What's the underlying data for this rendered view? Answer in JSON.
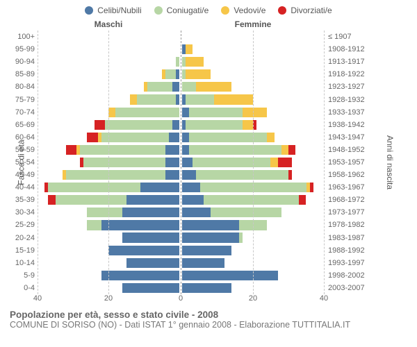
{
  "chart": {
    "type": "population-pyramid",
    "background_color": "#ffffff",
    "grid_color": "#c7c7c7",
    "text_color": "#666666",
    "font_family": "Arial",
    "legend": [
      {
        "label": "Celibi/Nubili",
        "color": "#4f79a6"
      },
      {
        "label": "Coniugati/e",
        "color": "#b7d6a5"
      },
      {
        "label": "Vedovi/e",
        "color": "#f6c649"
      },
      {
        "label": "Divorziati/e",
        "color": "#d62223"
      }
    ],
    "headers": {
      "male": "Maschi",
      "female": "Femmine"
    },
    "axis_left_label": "Fasce di età",
    "axis_right_label": "Anni di nascita",
    "x_ticks": [
      40,
      20,
      0,
      20,
      40
    ],
    "x_max": 40,
    "age_groups": [
      "100+",
      "95-99",
      "90-94",
      "85-89",
      "80-84",
      "75-79",
      "70-74",
      "65-69",
      "60-64",
      "55-59",
      "50-54",
      "45-49",
      "40-44",
      "35-39",
      "30-34",
      "25-29",
      "20-24",
      "15-19",
      "10-14",
      "5-9",
      "0-4"
    ],
    "birth_years": [
      "≤ 1907",
      "1908-1912",
      "1913-1917",
      "1918-1922",
      "1923-1927",
      "1928-1932",
      "1933-1937",
      "1938-1942",
      "1943-1947",
      "1948-1952",
      "1953-1957",
      "1958-1962",
      "1963-1967",
      "1968-1972",
      "1973-1977",
      "1978-1982",
      "1983-1987",
      "1988-1992",
      "1993-1997",
      "1998-2002",
      "2003-2007"
    ],
    "rows": [
      {
        "m": {
          "cel": 0,
          "con": 0,
          "ved": 0,
          "div": 0
        },
        "f": {
          "cel": 0,
          "con": 0,
          "ved": 0,
          "div": 0
        }
      },
      {
        "m": {
          "cel": 0,
          "con": 0,
          "ved": 0,
          "div": 0
        },
        "f": {
          "cel": 1,
          "con": 0,
          "ved": 2,
          "div": 0
        }
      },
      {
        "m": {
          "cel": 0,
          "con": 1,
          "ved": 0,
          "div": 0
        },
        "f": {
          "cel": 0,
          "con": 1,
          "ved": 5,
          "div": 0
        }
      },
      {
        "m": {
          "cel": 1,
          "con": 3,
          "ved": 1,
          "div": 0
        },
        "f": {
          "cel": 0,
          "con": 1,
          "ved": 7,
          "div": 0
        }
      },
      {
        "m": {
          "cel": 2,
          "con": 7,
          "ved": 1,
          "div": 0
        },
        "f": {
          "cel": 0,
          "con": 4,
          "ved": 10,
          "div": 0
        }
      },
      {
        "m": {
          "cel": 1,
          "con": 11,
          "ved": 2,
          "div": 0
        },
        "f": {
          "cel": 1,
          "con": 8,
          "ved": 11,
          "div": 0
        }
      },
      {
        "m": {
          "cel": 0,
          "con": 18,
          "ved": 2,
          "div": 0
        },
        "f": {
          "cel": 2,
          "con": 15,
          "ved": 7,
          "div": 0
        }
      },
      {
        "m": {
          "cel": 2,
          "con": 19,
          "ved": 0,
          "div": 3
        },
        "f": {
          "cel": 1,
          "con": 16,
          "ved": 3,
          "div": 1
        }
      },
      {
        "m": {
          "cel": 3,
          "con": 19,
          "ved": 1,
          "div": 3
        },
        "f": {
          "cel": 2,
          "con": 22,
          "ved": 2,
          "div": 0
        }
      },
      {
        "m": {
          "cel": 4,
          "con": 24,
          "ved": 1,
          "div": 3
        },
        "f": {
          "cel": 2,
          "con": 26,
          "ved": 2,
          "div": 2
        }
      },
      {
        "m": {
          "cel": 4,
          "con": 23,
          "ved": 0,
          "div": 1
        },
        "f": {
          "cel": 3,
          "con": 22,
          "ved": 2,
          "div": 4
        }
      },
      {
        "m": {
          "cel": 4,
          "con": 28,
          "ved": 1,
          "div": 0
        },
        "f": {
          "cel": 4,
          "con": 26,
          "ved": 0,
          "div": 1
        }
      },
      {
        "m": {
          "cel": 11,
          "con": 26,
          "ved": 0,
          "div": 1
        },
        "f": {
          "cel": 5,
          "con": 30,
          "ved": 1,
          "div": 1
        }
      },
      {
        "m": {
          "cel": 15,
          "con": 20,
          "ved": 0,
          "div": 2
        },
        "f": {
          "cel": 6,
          "con": 27,
          "ved": 0,
          "div": 2
        }
      },
      {
        "m": {
          "cel": 16,
          "con": 10,
          "ved": 0,
          "div": 0
        },
        "f": {
          "cel": 8,
          "con": 20,
          "ved": 0,
          "div": 0
        }
      },
      {
        "m": {
          "cel": 22,
          "con": 4,
          "ved": 0,
          "div": 0
        },
        "f": {
          "cel": 16,
          "con": 8,
          "ved": 0,
          "div": 0
        }
      },
      {
        "m": {
          "cel": 16,
          "con": 0,
          "ved": 0,
          "div": 0
        },
        "f": {
          "cel": 16,
          "con": 1,
          "ved": 0,
          "div": 0
        }
      },
      {
        "m": {
          "cel": 20,
          "con": 0,
          "ved": 0,
          "div": 0
        },
        "f": {
          "cel": 14,
          "con": 0,
          "ved": 0,
          "div": 0
        }
      },
      {
        "m": {
          "cel": 15,
          "con": 0,
          "ved": 0,
          "div": 0
        },
        "f": {
          "cel": 12,
          "con": 0,
          "ved": 0,
          "div": 0
        }
      },
      {
        "m": {
          "cel": 22,
          "con": 0,
          "ved": 0,
          "div": 0
        },
        "f": {
          "cel": 27,
          "con": 0,
          "ved": 0,
          "div": 0
        }
      },
      {
        "m": {
          "cel": 16,
          "con": 0,
          "ved": 0,
          "div": 0
        },
        "f": {
          "cel": 14,
          "con": 0,
          "ved": 0,
          "div": 0
        }
      }
    ]
  },
  "footer": {
    "title": "Popolazione per età, sesso e stato civile - 2008",
    "subtitle": "COMUNE DI SORISO (NO) - Dati ISTAT 1° gennaio 2008 - Elaborazione TUTTITALIA.IT"
  }
}
